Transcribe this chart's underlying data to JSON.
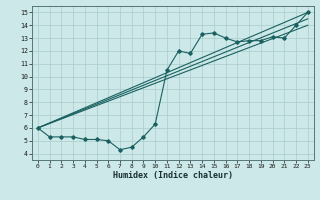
{
  "xlabel": "Humidex (Indice chaleur)",
  "bg_color": "#cce8e8",
  "grid_color": "#aacccc",
  "line_color": "#1a6060",
  "xlim": [
    -0.5,
    23.5
  ],
  "ylim": [
    3.5,
    15.5
  ],
  "xticks": [
    0,
    1,
    2,
    3,
    4,
    5,
    6,
    7,
    8,
    9,
    10,
    11,
    12,
    13,
    14,
    15,
    16,
    17,
    18,
    19,
    20,
    21,
    22,
    23
  ],
  "yticks": [
    4,
    5,
    6,
    7,
    8,
    9,
    10,
    11,
    12,
    13,
    14,
    15
  ],
  "curve_x": [
    0,
    1,
    2,
    3,
    4,
    5,
    6,
    7,
    8,
    9,
    10,
    11,
    12,
    13,
    14,
    15,
    16,
    17,
    18,
    19,
    20,
    21,
    22,
    23
  ],
  "curve_y": [
    6.0,
    5.3,
    5.3,
    5.3,
    5.1,
    5.1,
    5.0,
    4.3,
    4.5,
    5.3,
    6.3,
    10.5,
    12.0,
    11.8,
    13.3,
    13.4,
    13.0,
    12.7,
    12.8,
    12.8,
    13.1,
    13.0,
    14.0,
    15.0
  ],
  "line1_x": [
    0,
    23
  ],
  "line1_y": [
    6.0,
    15.0
  ],
  "line2_x": [
    0,
    23
  ],
  "line2_y": [
    6.0,
    14.5
  ],
  "line3_x": [
    0,
    23
  ],
  "line3_y": [
    6.0,
    14.0
  ]
}
